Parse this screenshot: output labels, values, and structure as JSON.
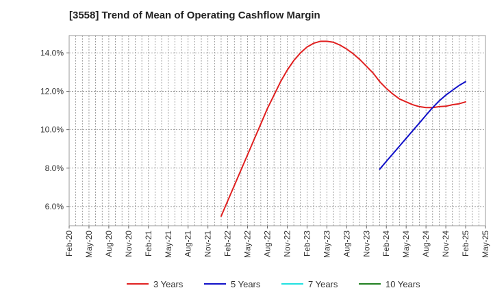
{
  "chart_data": {
    "type": "line",
    "title": "[3558]  Trend of Mean of Operating Cashflow Margin",
    "xlabel": "",
    "ylabel": "",
    "x_ticks": [
      "Feb-20",
      "May-20",
      "Aug-20",
      "Nov-20",
      "Feb-21",
      "May-21",
      "Aug-21",
      "Nov-21",
      "Feb-22",
      "May-22",
      "Aug-22",
      "Nov-22",
      "Feb-23",
      "May-23",
      "Aug-23",
      "Nov-23",
      "Feb-24",
      "May-24",
      "Aug-24",
      "Nov-24",
      "Feb-25",
      "May-25"
    ],
    "y_ticks": [
      "6.0%",
      "8.0%",
      "10.0%",
      "12.0%",
      "14.0%"
    ],
    "y_tick_values": [
      6,
      8,
      10,
      12,
      14
    ],
    "ylim": [
      5.0,
      14.9
    ],
    "grid": true,
    "legend_position": "bottom",
    "series": [
      {
        "name": "3 Years",
        "color": "#e02020",
        "x": [
          "Jan-22",
          "Feb-22",
          "Mar-22",
          "Apr-22",
          "May-22",
          "Jun-22",
          "Jul-22",
          "Aug-22",
          "Sep-22",
          "Oct-22",
          "Nov-22",
          "Dec-22",
          "Jan-23",
          "Feb-23",
          "Mar-23",
          "Apr-23",
          "May-23",
          "Jun-23",
          "Jul-23",
          "Aug-23",
          "Sep-23",
          "Oct-23",
          "Nov-23",
          "Dec-23",
          "Jan-24",
          "Feb-24",
          "Mar-24",
          "Apr-24",
          "May-24",
          "Jun-24",
          "Jul-24",
          "Aug-24",
          "Sep-24",
          "Oct-24",
          "Nov-24",
          "Dec-24",
          "Jan-25",
          "Feb-25"
        ],
        "values": [
          5.5,
          6.3,
          7.1,
          7.9,
          8.7,
          9.5,
          10.3,
          11.1,
          11.8,
          12.5,
          13.1,
          13.6,
          14.0,
          14.3,
          14.5,
          14.6,
          14.6,
          14.55,
          14.4,
          14.2,
          13.95,
          13.65,
          13.3,
          12.95,
          12.5,
          12.15,
          11.85,
          11.6,
          11.45,
          11.3,
          11.2,
          11.15,
          11.15,
          11.2,
          11.22,
          11.3,
          11.35,
          11.45
        ]
      },
      {
        "name": "5 Years",
        "color": "#1010c8",
        "x": [
          "Jan-24",
          "Feb-24",
          "Mar-24",
          "Apr-24",
          "May-24",
          "Jun-24",
          "Jul-24",
          "Aug-24",
          "Sep-24",
          "Oct-24",
          "Nov-24",
          "Dec-24",
          "Jan-25",
          "Feb-25"
        ],
        "values": [
          7.95,
          8.35,
          8.75,
          9.15,
          9.55,
          9.95,
          10.35,
          10.75,
          11.15,
          11.5,
          11.8,
          12.05,
          12.3,
          12.5
        ]
      },
      {
        "name": "7 Years",
        "color": "#20e0e0",
        "x": [],
        "values": []
      },
      {
        "name": "10 Years",
        "color": "#208020",
        "x": [],
        "values": []
      }
    ]
  }
}
